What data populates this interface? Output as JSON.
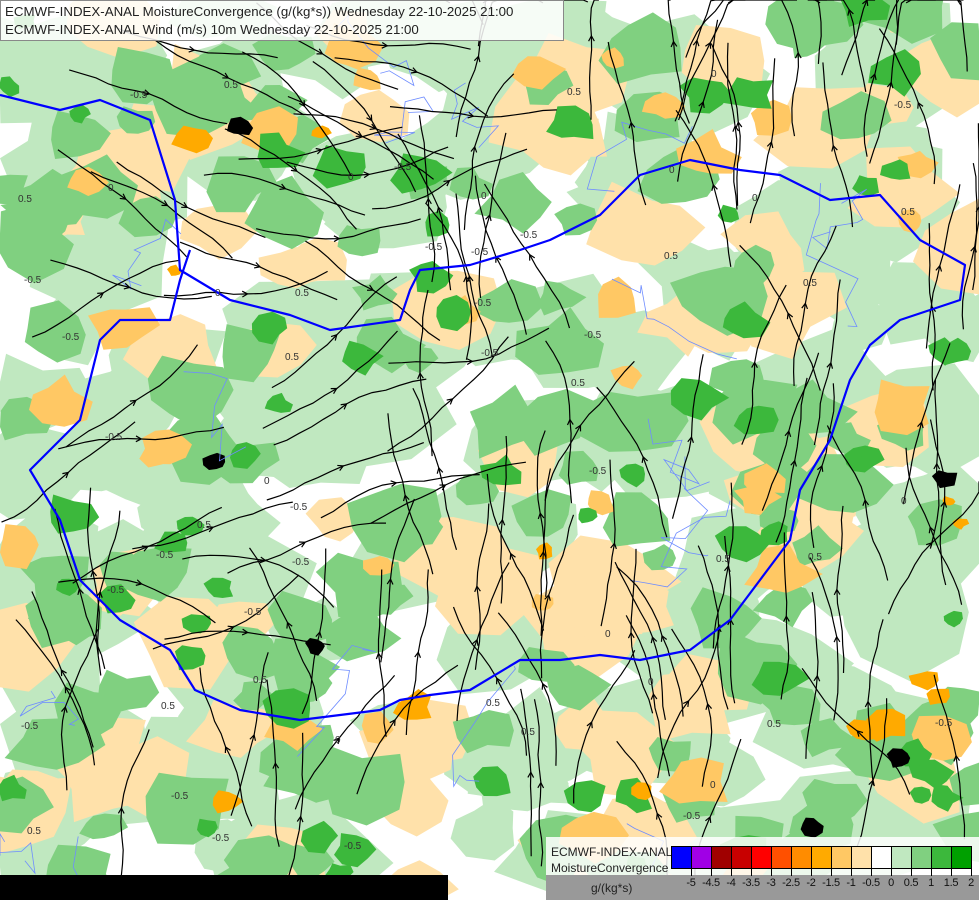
{
  "header": {
    "line1": "ECMWF-INDEX-ANAL MoistureConvergence (g/(kg*s)) Wednesday 22-10-2025 21:00",
    "line2": "ECMWF-INDEX-ANAL Wind (m/s) 10m Wednesday 22-10-2025 21:00"
  },
  "legend": {
    "line1": "ECMWF-INDEX-ANAL",
    "line2": "MoistureConvergence",
    "unit": "g/(kg*s)",
    "colors": [
      "#0000ff",
      "#a000e6",
      "#a00000",
      "#c80000",
      "#ff0000",
      "#ff5000",
      "#ff8c00",
      "#ffaa00",
      "#ffc864",
      "#ffe1aa",
      "#ffffff",
      "#c0e8c0",
      "#80d080",
      "#3cb83c",
      "#00a000"
    ],
    "labels": [
      "-5",
      "-4.5",
      "-4",
      "-3.5",
      "-3",
      "-2.5",
      "-2",
      "-1.5",
      "-1",
      "-0.5",
      "0",
      "0.5",
      "1",
      "1.5",
      "2"
    ]
  },
  "map": {
    "contour_labels": [
      "-0.5",
      "0",
      "0.5"
    ],
    "colors": {
      "border": "#0000ff",
      "river": "#6e8cff",
      "streamline": "#000000",
      "dark_core": "#000000"
    }
  }
}
